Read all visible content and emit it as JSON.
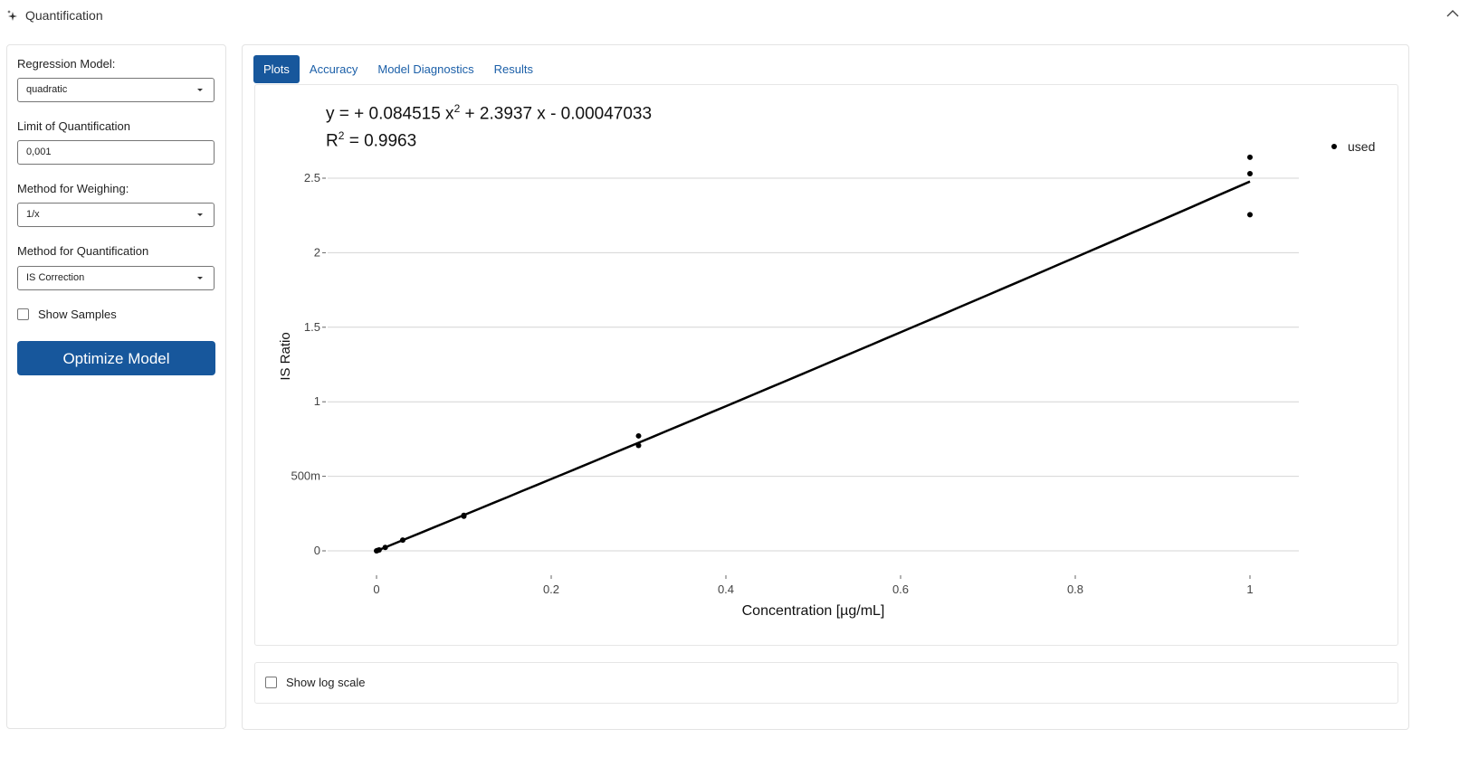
{
  "header": {
    "title": "Quantification",
    "sparkle_icon": "sparkle-icon",
    "collapse_icon": "chevron-up-icon"
  },
  "sidebar": {
    "regression_label": "Regression Model:",
    "regression_value": "quadratic",
    "loq_label": "Limit of Quantification",
    "loq_value": "0,001",
    "weighing_label": "Method for Weighing:",
    "weighing_value": "1/x",
    "quant_label": "Method for Quantification",
    "quant_value": "IS Correction",
    "show_samples_label": "Show Samples",
    "show_samples_checked": false,
    "optimize_button": "Optimize Model"
  },
  "tabs": [
    {
      "label": "Plots",
      "active": true
    },
    {
      "label": "Accuracy",
      "active": false
    },
    {
      "label": "Model Diagnostics",
      "active": false
    },
    {
      "label": "Results",
      "active": false
    }
  ],
  "equation": {
    "line1_a": "y =  + 0.084515 x",
    "line1_exp": "2",
    "line1_b": " + 2.3937 x - 0.00047033",
    "line2_a": "R",
    "line2_exp": "2",
    "line2_b": " = 0.9963"
  },
  "chart_data": {
    "type": "scatter",
    "xlabel": "Concentration [µg/mL]",
    "ylabel": "IS Ratio",
    "xlim": [
      -0.07,
      1.06
    ],
    "ylim": [
      -0.12,
      2.7
    ],
    "x_ticks": [
      0,
      0.2,
      0.4,
      0.6,
      0.8,
      1
    ],
    "x_tick_labels": [
      "0",
      "0.2",
      "0.4",
      "0.6",
      "0.8",
      "1"
    ],
    "y_ticks": [
      0,
      0.5,
      1,
      1.5,
      2,
      2.5
    ],
    "y_tick_labels": [
      "0",
      "500m",
      "1",
      "1.5",
      "2",
      "2.5"
    ],
    "grid": "horizontal",
    "legend": {
      "position": "top-right",
      "entries": [
        "used"
      ]
    },
    "series": [
      {
        "name": "used",
        "points": [
          [
            0,
            0.0
          ],
          [
            0.001,
            0.002
          ],
          [
            0.003,
            0.006
          ],
          [
            0.01,
            0.023
          ],
          [
            0.03,
            0.072
          ],
          [
            0.1,
            0.238
          ],
          [
            0.1,
            0.232
          ],
          [
            0.3,
            0.771
          ],
          [
            0.3,
            0.707
          ],
          [
            1,
            2.64
          ],
          [
            1,
            2.53
          ],
          [
            1,
            2.255
          ]
        ]
      }
    ],
    "fit": {
      "a": 0.084515,
      "b": 2.3937,
      "c": -0.00047033,
      "x_range": [
        0,
        1
      ]
    }
  }
}
